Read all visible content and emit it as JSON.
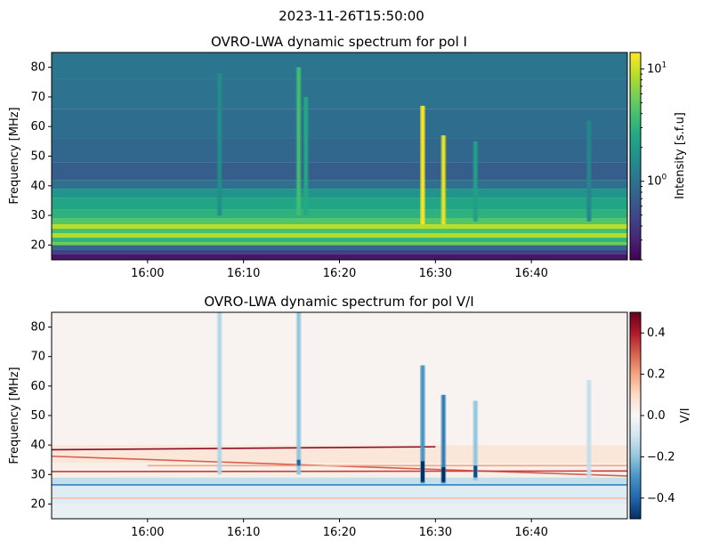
{
  "suptitle": "2023-11-26T15:50:00",
  "colors": {
    "viridis": [
      "#440154",
      "#482475",
      "#414487",
      "#355f8d",
      "#2a788e",
      "#21918c",
      "#22a884",
      "#44bf70",
      "#7ad151",
      "#bddf26",
      "#fde725"
    ],
    "rdbu": [
      "#053061",
      "#2166ac",
      "#4393c3",
      "#92c5de",
      "#d1e5f0",
      "#f7f7f7",
      "#fddbc7",
      "#f4a582",
      "#d6604d",
      "#b2182b",
      "#67001f"
    ]
  },
  "chart_data": [
    {
      "type": "heatmap",
      "title": "OVRO-LWA dynamic spectrum for pol I",
      "ylabel": "Frequency [MHz]",
      "xlabel": "",
      "ylim": [
        15,
        85
      ],
      "yticks": [
        20,
        30,
        40,
        50,
        60,
        70,
        80
      ],
      "xlim": [
        "15:50:00",
        "16:50:00"
      ],
      "xticks": [
        "16:00",
        "16:10",
        "16:20",
        "16:30",
        "16:40"
      ],
      "colormap": "viridis",
      "colorbar": {
        "label": "Intensity [s.f.u]",
        "scale": "log",
        "range": [
          0.2,
          14
        ],
        "ticks": [
          {
            "label": "10",
            "exp": "0",
            "value": 1
          },
          {
            "label": "10",
            "exp": "1",
            "value": 10
          }
        ]
      },
      "background": [
        {
          "f_lo": 15,
          "f_hi": 17,
          "value": 0.26
        },
        {
          "f_lo": 17,
          "f_hi": 18.5,
          "value": 0.45
        },
        {
          "f_lo": 18.5,
          "f_hi": 20,
          "value": 0.85
        },
        {
          "f_lo": 20,
          "f_hi": 21,
          "value": 5.5
        },
        {
          "f_lo": 21,
          "f_hi": 22.5,
          "value": 3.2
        },
        {
          "f_lo": 22.5,
          "f_hi": 24,
          "value": 8.5
        },
        {
          "f_lo": 24,
          "f_hi": 25.5,
          "value": 4.0
        },
        {
          "f_lo": 25.5,
          "f_hi": 27,
          "value": 9.0
        },
        {
          "f_lo": 27,
          "f_hi": 29,
          "value": 4.5
        },
        {
          "f_lo": 29,
          "f_hi": 32,
          "value": 3.0
        },
        {
          "f_lo": 32,
          "f_hi": 36,
          "value": 2.4
        },
        {
          "f_lo": 36,
          "f_hi": 39,
          "value": 1.8
        },
        {
          "f_lo": 39,
          "f_hi": 42,
          "value": 0.95
        },
        {
          "f_lo": 42,
          "f_hi": 48,
          "value": 0.7
        },
        {
          "f_lo": 48,
          "f_hi": 56,
          "value": 0.82
        },
        {
          "f_lo": 56,
          "f_hi": 66,
          "value": 0.9
        },
        {
          "f_lo": 66,
          "f_hi": 76,
          "value": 0.98
        },
        {
          "f_lo": 76,
          "f_hi": 85,
          "value": 1.05
        }
      ],
      "bursts": [
        {
          "t": "16:07:30",
          "f_lo": 30,
          "f_hi": 78,
          "value": 1.6
        },
        {
          "t": "16:15:45",
          "f_lo": 30,
          "f_hi": 80,
          "value": 3.8
        },
        {
          "t": "16:16:30",
          "f_lo": 30,
          "f_hi": 70,
          "value": 2.6
        },
        {
          "t": "16:28:40",
          "f_lo": 27,
          "f_hi": 67,
          "value": 14
        },
        {
          "t": "16:30:50",
          "f_lo": 27,
          "f_hi": 57,
          "value": 12
        },
        {
          "t": "16:34:10",
          "f_lo": 28,
          "f_hi": 55,
          "value": 2.2
        },
        {
          "t": "16:46:00",
          "f_lo": 28,
          "f_hi": 62,
          "value": 1.4
        }
      ]
    },
    {
      "type": "heatmap",
      "title": "OVRO-LWA dynamic spectrum for pol V/I",
      "ylabel": "Frequency [MHz]",
      "xlabel": "",
      "ylim": [
        15,
        85
      ],
      "yticks": [
        20,
        30,
        40,
        50,
        60,
        70,
        80
      ],
      "xlim": [
        "15:50:00",
        "16:50:00"
      ],
      "xticks": [
        "16:00",
        "16:10",
        "16:20",
        "16:30",
        "16:40"
      ],
      "colormap": "RdBu_r",
      "colorbar": {
        "label": "V/I",
        "scale": "linear",
        "range": [
          -0.5,
          0.5
        ],
        "ticks": [
          {
            "label": "−0.4",
            "value": -0.4
          },
          {
            "label": "−0.2",
            "value": -0.2
          },
          {
            "label": "0.0",
            "value": 0
          },
          {
            "label": "0.2",
            "value": 0.2
          },
          {
            "label": "0.4",
            "value": 0.4
          }
        ]
      },
      "background": [
        {
          "f_lo": 15,
          "f_hi": 20,
          "value": -0.04
        },
        {
          "f_lo": 20,
          "f_hi": 26,
          "value": -0.06
        },
        {
          "f_lo": 26,
          "f_hi": 29,
          "value": -0.12
        },
        {
          "f_lo": 29,
          "f_hi": 34,
          "value": 0.03
        },
        {
          "f_lo": 34,
          "f_hi": 40,
          "value": 0.06
        },
        {
          "f_lo": 40,
          "f_hi": 85,
          "value": 0.015
        }
      ],
      "lines": [
        {
          "t0": "15:50:00",
          "f0": 38.4,
          "t1": "16:30:00",
          "f1": 39.4,
          "value": 0.45
        },
        {
          "t0": "15:50:00",
          "f0": 36.2,
          "t1": "16:50:00",
          "f1": 29.5,
          "value": 0.3
        },
        {
          "t0": "15:50:00",
          "f0": 31.0,
          "t1": "16:50:00",
          "f1": 31.2,
          "value": 0.35
        },
        {
          "t0": "16:00:00",
          "f0": 33.0,
          "t1": "16:50:00",
          "f1": 33.0,
          "value": 0.2
        },
        {
          "t0": "15:50:00",
          "f0": 26.5,
          "t1": "16:50:00",
          "f1": 26.5,
          "value": -0.35
        },
        {
          "t0": "15:50:00",
          "f0": 22.0,
          "t1": "16:50:00",
          "f1": 22.0,
          "value": 0.15
        }
      ],
      "bursts": [
        {
          "t": "16:07:30",
          "f_lo": 30,
          "f_hi": 85,
          "value": -0.15
        },
        {
          "t": "16:15:45",
          "f_lo": 30,
          "f_hi": 85,
          "value": -0.2
        },
        {
          "t": "16:28:40",
          "f_lo": 27,
          "f_hi": 67,
          "value": -0.3
        },
        {
          "t": "16:30:50",
          "f_lo": 27,
          "f_hi": 57,
          "value": -0.35
        },
        {
          "t": "16:34:10",
          "f_lo": 28,
          "f_hi": 55,
          "value": -0.2
        },
        {
          "t": "16:46:00",
          "f_lo": 28,
          "f_hi": 62,
          "value": -0.12
        }
      ],
      "spots": [
        {
          "t": "16:28:40",
          "f_lo": 27.5,
          "f_hi": 34.5,
          "value": -0.5
        },
        {
          "t": "16:30:50",
          "f_lo": 27.5,
          "f_hi": 32.5,
          "value": -0.5
        },
        {
          "t": "16:34:10",
          "f_lo": 29,
          "f_hi": 33,
          "value": -0.45
        },
        {
          "t": "16:15:45",
          "f_lo": 33,
          "f_hi": 35,
          "value": -0.4
        }
      ]
    }
  ]
}
